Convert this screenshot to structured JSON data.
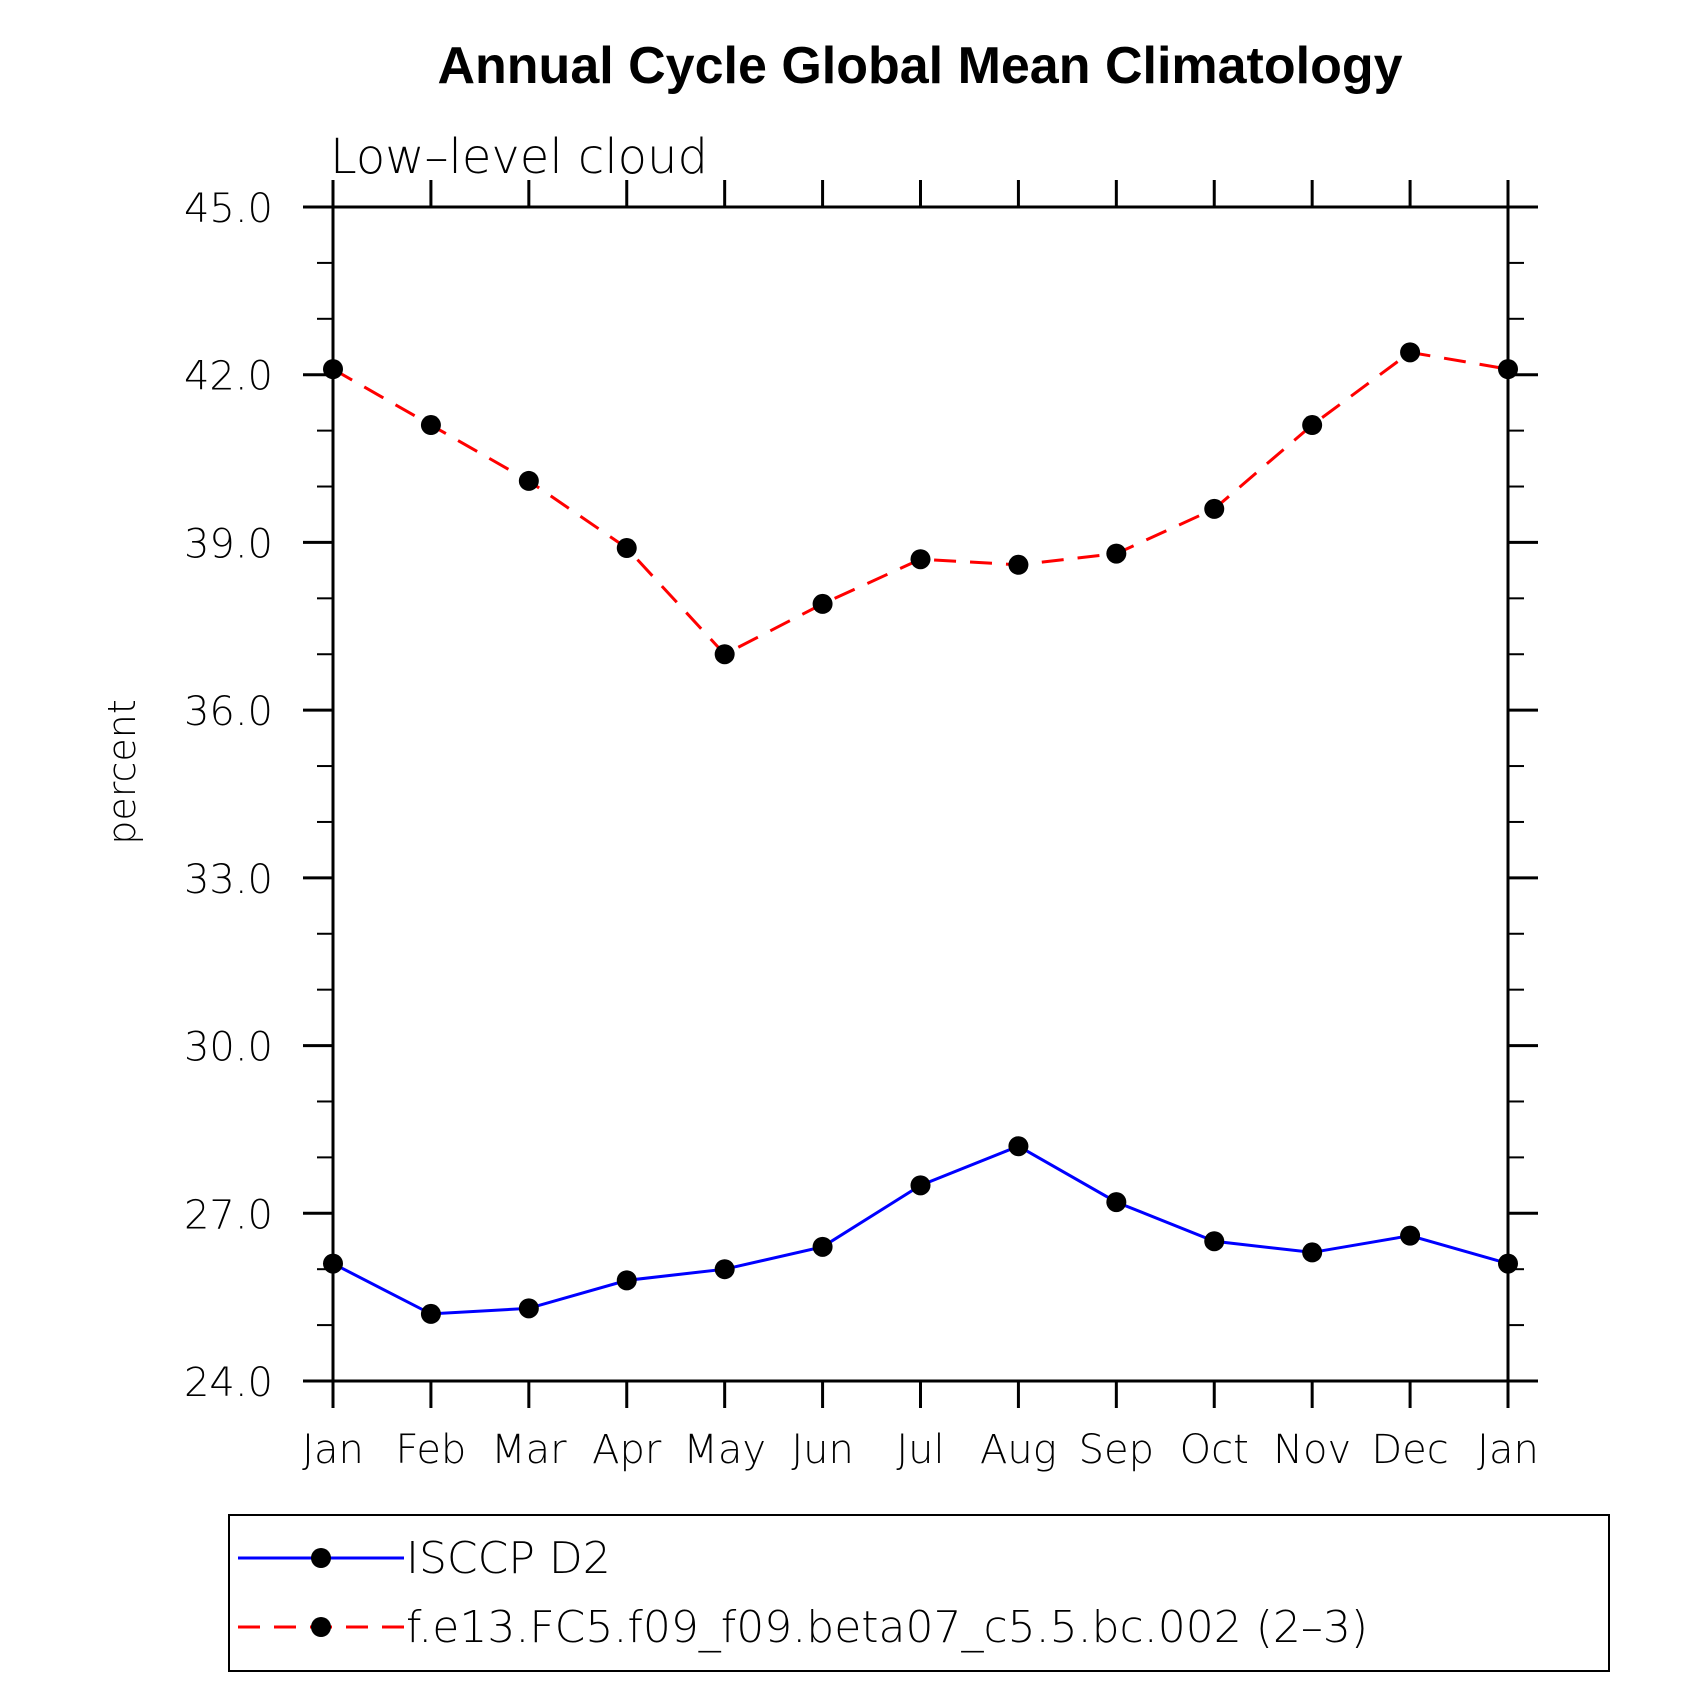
{
  "chart_data": {
    "type": "line",
    "title": "Annual Cycle Global Mean Climatology",
    "subtitle": "Low–level cloud",
    "ylabel": "percent",
    "xlabel": "",
    "categories": [
      "Jan",
      "Feb",
      "Mar",
      "Apr",
      "May",
      "Jun",
      "Jul",
      "Aug",
      "Sep",
      "Oct",
      "Nov",
      "Dec",
      "Jan"
    ],
    "ylim": [
      24.0,
      45.0
    ],
    "yticks": [
      "24.0",
      "27.0",
      "30.0",
      "33.0",
      "36.0",
      "39.0",
      "42.0",
      "45.0"
    ],
    "legend_position": "bottom",
    "grid": false,
    "series": [
      {
        "name": "ISCCP D2",
        "color": "#0000ff",
        "dash": "solid",
        "values": [
          26.1,
          25.2,
          25.3,
          25.8,
          26.0,
          26.4,
          27.5,
          28.2,
          27.2,
          26.5,
          26.3,
          26.6,
          26.1
        ]
      },
      {
        "name": "f.e13.FC5.f09_f09.beta07_c5.5.bc.002 (2–3)",
        "color": "#ff0000",
        "dash": "dashed",
        "values": [
          42.1,
          41.1,
          40.1,
          38.9,
          37.0,
          37.9,
          38.7,
          38.6,
          38.8,
          39.6,
          41.1,
          42.4,
          42.1
        ]
      }
    ]
  }
}
